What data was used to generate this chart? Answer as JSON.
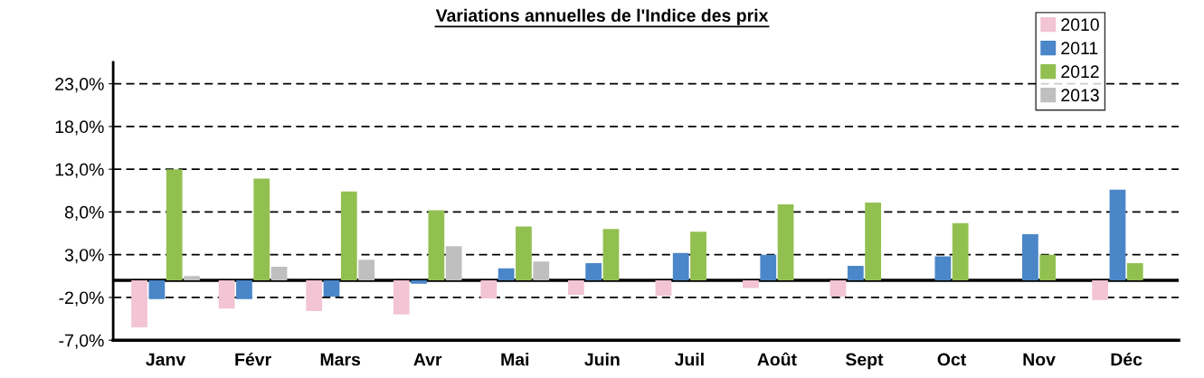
{
  "chart_data": {
    "type": "bar",
    "title": "Variations annuelles de l'Indice des prix",
    "categories": [
      "Janv",
      "Févr",
      "Mars",
      "Avr",
      "Mai",
      "Juin",
      "Juil",
      "Août",
      "Sept",
      "Oct",
      "Nov",
      "Déc"
    ],
    "series": [
      {
        "name": "2010",
        "color": "#f2c4d4",
        "values": [
          -5.5,
          -3.3,
          -3.6,
          -4.0,
          -2.1,
          -1.7,
          -1.8,
          -0.9,
          -1.9,
          null,
          null,
          -2.3
        ]
      },
      {
        "name": "2011",
        "color": "#4a86c8",
        "values": [
          -2.2,
          -2.2,
          -1.9,
          -0.4,
          1.4,
          2.0,
          3.2,
          3.0,
          1.7,
          2.8,
          5.4,
          10.6
        ]
      },
      {
        "name": "2012",
        "color": "#92c050",
        "values": [
          13.0,
          11.9,
          10.4,
          8.2,
          6.3,
          6.0,
          5.7,
          8.9,
          9.1,
          6.7,
          3.0,
          2.0
        ]
      },
      {
        "name": "2013",
        "color": "#bfbfbf",
        "values": [
          0.5,
          1.6,
          2.4,
          4.0,
          2.2,
          null,
          null,
          null,
          null,
          null,
          null,
          null
        ]
      }
    ],
    "ylim": [
      -7,
      25.5
    ],
    "yticks": [
      {
        "value": -7,
        "label": "-7,0%"
      },
      {
        "value": -2,
        "label": "-2,0%"
      },
      {
        "value": 3,
        "label": "3,0%"
      },
      {
        "value": 8,
        "label": "8,0%"
      },
      {
        "value": 13,
        "label": "13,0%"
      },
      {
        "value": 18,
        "label": "18,0%"
      },
      {
        "value": 23,
        "label": "23,0%"
      }
    ],
    "grid": "y",
    "line_style": "dashed",
    "legend": "top right"
  }
}
